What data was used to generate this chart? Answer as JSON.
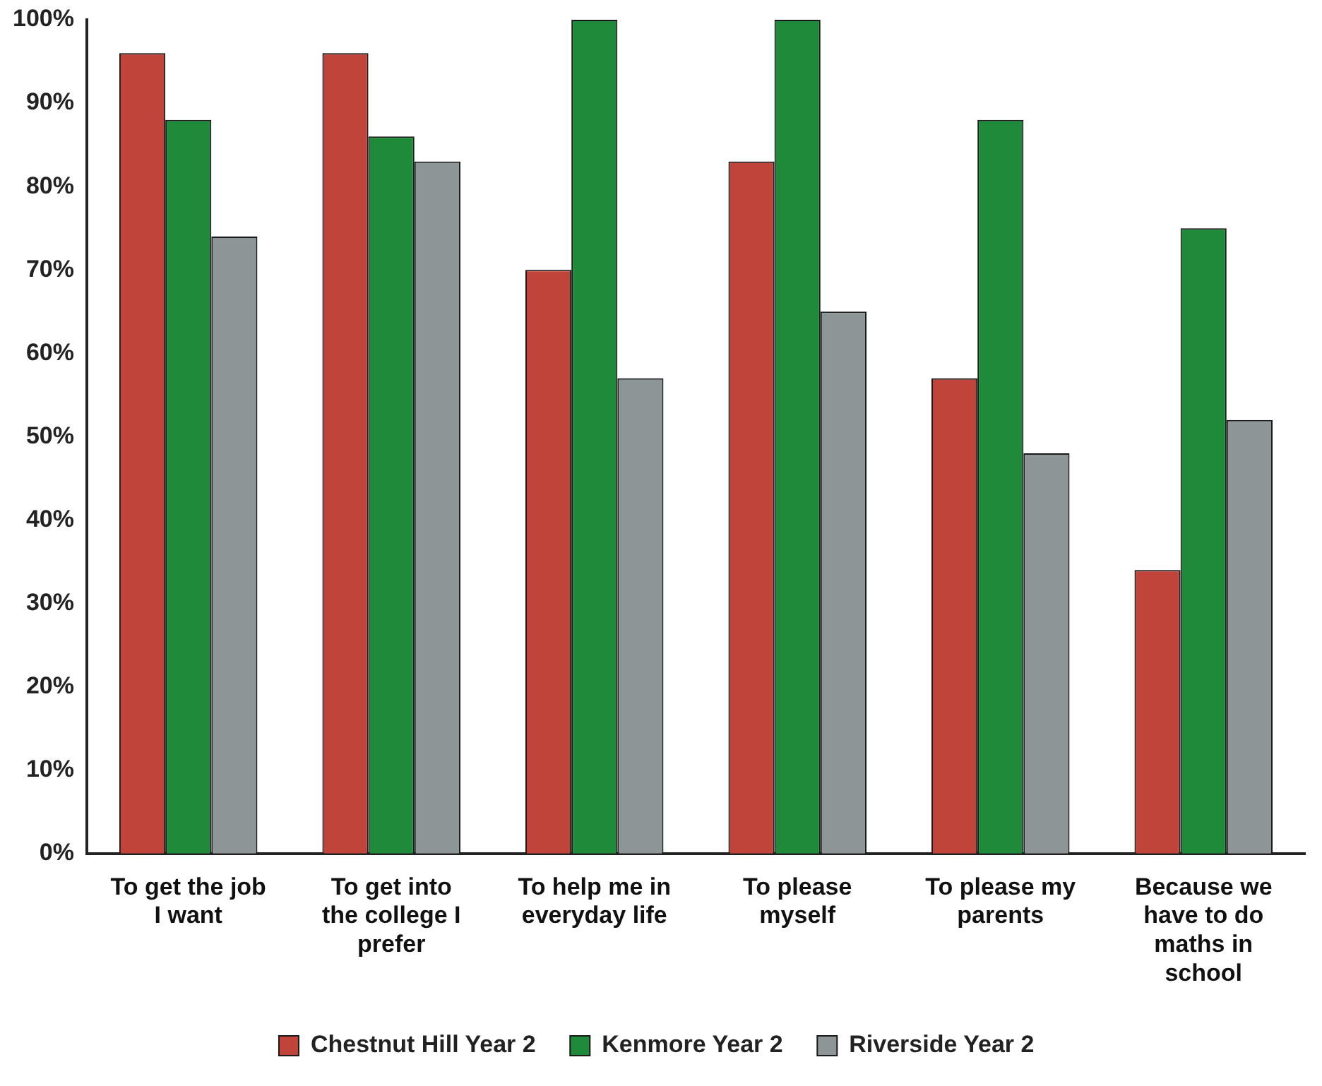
{
  "chart_data": {
    "type": "bar",
    "categories": [
      "To get the job I want",
      "To get into the college I prefer",
      "To help me in everyday life",
      "To please myself",
      "To please my parents",
      "Because we have to do maths in school"
    ],
    "series": [
      {
        "name": "Chestnut Hill Year 2",
        "color": "#c0443a",
        "values": [
          96,
          96,
          70,
          83,
          57,
          34
        ]
      },
      {
        "name": "Kenmore Year 2",
        "color": "#1f8a3a",
        "values": [
          88,
          86,
          100,
          100,
          88,
          75
        ]
      },
      {
        "name": "Riverside Year 2",
        "color": "#8e9597",
        "values": [
          74,
          83,
          57,
          65,
          48,
          52
        ]
      }
    ],
    "ylim": [
      0,
      100
    ],
    "yticks": [
      {
        "value": 0,
        "label": "0%"
      },
      {
        "value": 10,
        "label": "10%"
      },
      {
        "value": 20,
        "label": "20%"
      },
      {
        "value": 30,
        "label": "30%"
      },
      {
        "value": 40,
        "label": "40%"
      },
      {
        "value": 50,
        "label": "50%"
      },
      {
        "value": 60,
        "label": "60%"
      },
      {
        "value": 70,
        "label": "70%"
      },
      {
        "value": 80,
        "label": "80%"
      },
      {
        "value": 90,
        "label": "90%"
      },
      {
        "value": 100,
        "label": "100%"
      }
    ],
    "grid": false,
    "legend": "bottom"
  }
}
